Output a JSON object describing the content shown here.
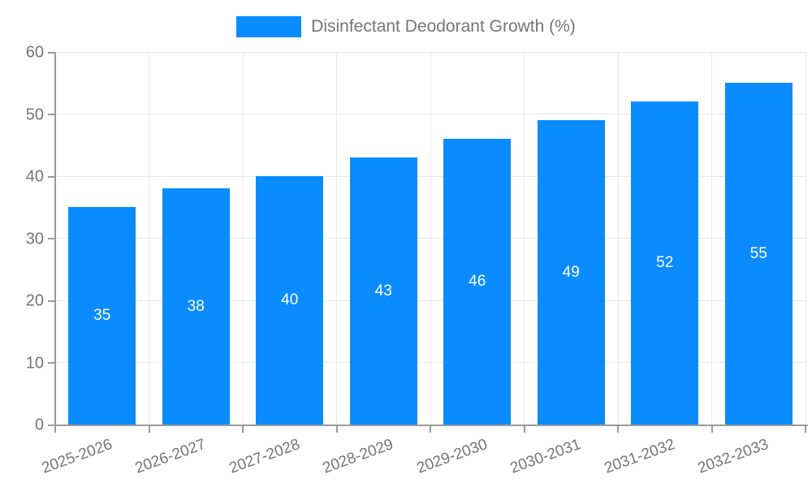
{
  "chart_data": {
    "type": "bar",
    "title": "Disinfectant Deodorant Growth (%)",
    "categories": [
      "2025-2026",
      "2026-2027",
      "2027-2028",
      "2028-2029",
      "2029-2030",
      "2030-2031",
      "2031-2032",
      "2032-2033"
    ],
    "values": [
      35,
      38,
      40,
      43,
      46,
      49,
      52,
      55
    ],
    "xlabel": "",
    "ylabel": "",
    "ylim": [
      0,
      60
    ],
    "ytick_step": 10,
    "yticks": [
      0,
      10,
      20,
      30,
      40,
      50,
      60
    ],
    "grid": "on",
    "legend_position": "top-center",
    "colors": {
      "bar": "#0a8cff",
      "value_label": "#ffffff",
      "grid": "#e8e8e8",
      "axis": "#9a9a9a",
      "tick_label": "#757575",
      "legend_text": "#757575",
      "background": "#ffffff"
    },
    "x_label_rotation_deg": -20,
    "value_labels_shown": true,
    "value_label_position": "center-of-bar"
  }
}
